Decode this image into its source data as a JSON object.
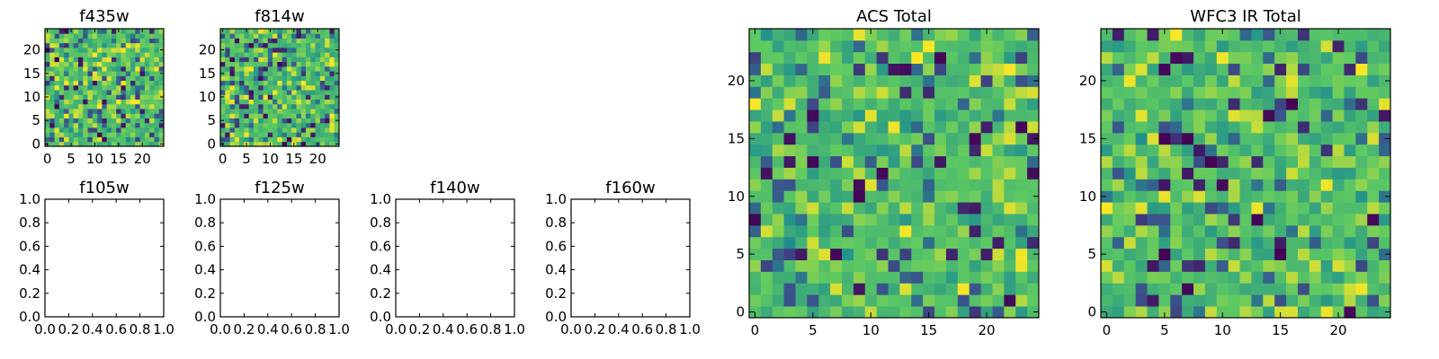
{
  "colors": {
    "colormap": [
      "#440154",
      "#3b528b",
      "#21918c",
      "#5ec962",
      "#fde725"
    ],
    "frame": "#000000",
    "background": "#ffffff"
  },
  "chart_data": [
    {
      "type": "heatmap",
      "title": "f435w",
      "grid_size": [
        25,
        25
      ],
      "colormap": "viridis",
      "xticks": [
        "0",
        "5",
        "10",
        "15",
        "20"
      ],
      "yticks": [
        "0",
        "5",
        "10",
        "15",
        "20"
      ],
      "xlim": [
        -0.5,
        24.5
      ],
      "ylim": [
        -0.5,
        24.5
      ],
      "seed": 11
    },
    {
      "type": "heatmap",
      "title": "f814w",
      "grid_size": [
        25,
        25
      ],
      "colormap": "viridis",
      "xticks": [
        "0",
        "5",
        "10",
        "15",
        "20"
      ],
      "yticks": [
        "0",
        "5",
        "10",
        "15",
        "20"
      ],
      "xlim": [
        -0.5,
        24.5
      ],
      "ylim": [
        -0.5,
        24.5
      ],
      "seed": 23
    },
    {
      "type": "empty",
      "title": "f105w",
      "xticks": [
        "0.0",
        "0.2",
        "0.4",
        "0.6",
        "0.8",
        "1.0"
      ],
      "yticks": [
        "0.0",
        "0.2",
        "0.4",
        "0.6",
        "0.8",
        "1.0"
      ],
      "xlim": [
        0,
        1
      ],
      "ylim": [
        0,
        1
      ]
    },
    {
      "type": "empty",
      "title": "f125w",
      "xticks": [
        "0.0",
        "0.2",
        "0.4",
        "0.6",
        "0.8",
        "1.0"
      ],
      "yticks": [
        "0.0",
        "0.2",
        "0.4",
        "0.6",
        "0.8",
        "1.0"
      ],
      "xlim": [
        0,
        1
      ],
      "ylim": [
        0,
        1
      ]
    },
    {
      "type": "empty",
      "title": "f140w",
      "xticks": [
        "0.0",
        "0.2",
        "0.4",
        "0.6",
        "0.8",
        "1.0"
      ],
      "yticks": [
        "0.0",
        "0.2",
        "0.4",
        "0.6",
        "0.8",
        "1.0"
      ],
      "xlim": [
        0,
        1
      ],
      "ylim": [
        0,
        1
      ]
    },
    {
      "type": "empty",
      "title": "f160w",
      "xticks": [
        "0.0",
        "0.2",
        "0.4",
        "0.6",
        "0.8",
        "1.0"
      ],
      "yticks": [
        "0.0",
        "0.2",
        "0.4",
        "0.6",
        "0.8",
        "1.0"
      ],
      "xlim": [
        0,
        1
      ],
      "ylim": [
        0,
        1
      ]
    },
    {
      "type": "heatmap",
      "title": "ACS Total",
      "grid_size": [
        25,
        25
      ],
      "colormap": "viridis",
      "xticks": [
        "0",
        "5",
        "10",
        "15",
        "20"
      ],
      "yticks": [
        "0",
        "5",
        "10",
        "15",
        "20"
      ],
      "xlim": [
        -0.5,
        24.5
      ],
      "ylim": [
        -0.5,
        24.5
      ],
      "seed": 37
    },
    {
      "type": "heatmap",
      "title": "WFC3 IR Total",
      "grid_size": [
        25,
        25
      ],
      "colormap": "viridis",
      "xticks": [
        "0",
        "5",
        "10",
        "15",
        "20"
      ],
      "yticks": [
        "0",
        "5",
        "10",
        "15",
        "20"
      ],
      "xlim": [
        -0.5,
        24.5
      ],
      "ylim": [
        -0.5,
        24.5
      ],
      "seed": 53
    }
  ]
}
